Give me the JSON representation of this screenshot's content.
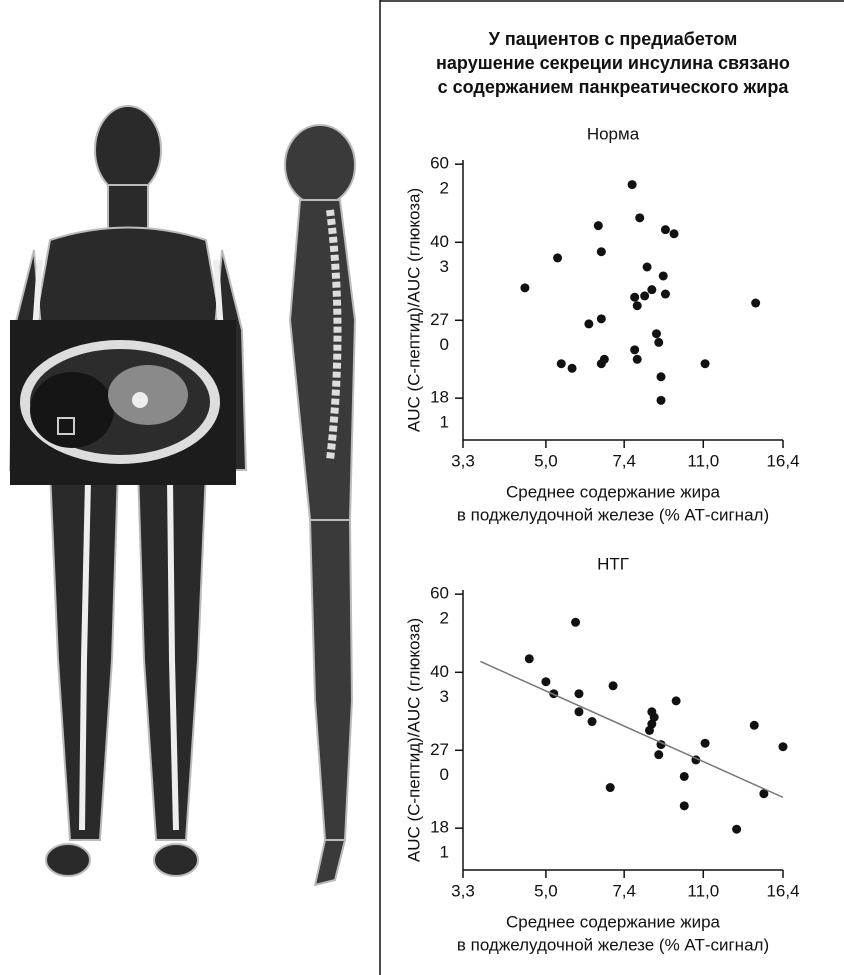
{
  "chart_data": [
    {
      "type": "scatter",
      "figure_title": [
        "У пациентов с предиабетом",
        "нарушение секреции инсулина связано",
        "с содержанием панкреатического жира"
      ],
      "title": "Норма",
      "x_label": [
        "Среднее содержание жира",
        "в поджелудочной железе (% АТ-сигнал)"
      ],
      "y_label": "AUC (С-пептид)/AUC (глюкоза)",
      "log_x": true,
      "log_y": true,
      "color": "#111111",
      "xlim": [
        3.3,
        16.4
      ],
      "ylim": [
        14.6,
        61.5
      ],
      "xticks": [
        {
          "value": 3.3,
          "label": "3,3"
        },
        {
          "value": 5.0,
          "label": "5,0"
        },
        {
          "value": 7.4,
          "label": "7,4"
        },
        {
          "value": 11.0,
          "label": "11,0"
        },
        {
          "value": 16.4,
          "label": "16,4"
        }
      ],
      "yticks": [
        {
          "value": 60.2,
          "label": [
            "60",
            "2"
          ]
        },
        {
          "value": 40.3,
          "label": [
            "40",
            "3"
          ]
        },
        {
          "value": 27.0,
          "label": [
            "27",
            "0"
          ]
        },
        {
          "value": 18.1,
          "label": [
            "18",
            "1"
          ]
        }
      ],
      "x": [
        4.5,
        5.3,
        5.4,
        5.7,
        6.5,
        6.6,
        6.6,
        6.2,
        6.6,
        6.7,
        7.7,
        8.0,
        7.8,
        7.9,
        8.2,
        8.3,
        8.5,
        8.7,
        9.0,
        9.1,
        9.1,
        9.5,
        7.8,
        7.9,
        8.8,
        8.9,
        8.9,
        11.1,
        14.3
      ],
      "values": [
        31.9,
        37.2,
        21.6,
        21.1,
        43.9,
        38.4,
        27.2,
        26.5,
        21.6,
        22.1,
        54.2,
        45.7,
        30.4,
        29.1,
        30.6,
        35.5,
        31.6,
        25.2,
        33.9,
        30.9,
        43.0,
        42.1,
        23.2,
        22.1,
        24.1,
        20.2,
        17.9,
        21.6,
        29.5
      ]
    },
    {
      "type": "scatter",
      "title": "НТГ",
      "x_label": [
        "Среднее содержание жира",
        "в поджелудочной железе (% АТ-сигнал)"
      ],
      "y_label": "AUC (С-пептид)/AUC (глюкоза)",
      "log_x": true,
      "log_y": true,
      "color": "#111111",
      "xlim": [
        3.3,
        16.4
      ],
      "ylim": [
        14.6,
        61.5
      ],
      "xticks": [
        {
          "value": 3.3,
          "label": "3,3"
        },
        {
          "value": 5.0,
          "label": "5,0"
        },
        {
          "value": 7.4,
          "label": "7,4"
        },
        {
          "value": 11.0,
          "label": "11,0"
        },
        {
          "value": 16.4,
          "label": "16,4"
        }
      ],
      "yticks": [
        {
          "value": 60.2,
          "label": [
            "60",
            "2"
          ]
        },
        {
          "value": 40.3,
          "label": [
            "40",
            "3"
          ]
        },
        {
          "value": 27.0,
          "label": [
            "27",
            "0"
          ]
        },
        {
          "value": 18.1,
          "label": [
            "18",
            "1"
          ]
        }
      ],
      "x": [
        4.6,
        5.0,
        5.2,
        5.8,
        5.9,
        5.9,
        6.3,
        7.0,
        6.9,
        8.5,
        8.5,
        8.4,
        8.6,
        8.9,
        8.8,
        9.6,
        10.6,
        10.0,
        10.0,
        11.1,
        14.2,
        14.9,
        13.0,
        16.4
      ],
      "values": [
        43.2,
        38.4,
        36.1,
        52.1,
        36.1,
        32.9,
        31.3,
        37.6,
        22.3,
        32.9,
        30.9,
        29.9,
        32.0,
        27.8,
        26.4,
        34.8,
        25.7,
        23.6,
        20.3,
        28.0,
        30.7,
        21.6,
        18.0,
        27.5
      ],
      "trendline": {
        "x": [
          3.6,
          16.4
        ],
        "values": [
          42.6,
          21.2
        ],
        "color": "#777777"
      }
    }
  ]
}
